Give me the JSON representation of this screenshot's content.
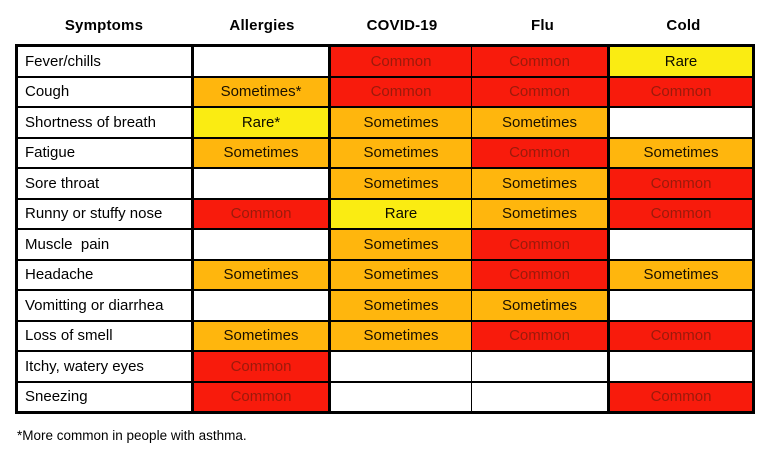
{
  "table": {
    "headers": [
      {
        "label": "Symptoms"
      },
      {
        "label": "Allergies"
      },
      {
        "label": "COVID-19"
      },
      {
        "label": "Flu"
      },
      {
        "label": "Cold"
      }
    ],
    "legend_colors": {
      "common": "#f81b0c",
      "sometimes": "#ffb60d",
      "rare": "#faec12",
      "none": "#ffffff"
    },
    "rows": [
      {
        "symptom": "Fever/chills",
        "cells": [
          {
            "text": "",
            "level": "none"
          },
          {
            "text": "Common",
            "level": "common"
          },
          {
            "text": "Common",
            "level": "common"
          },
          {
            "text": "Rare",
            "level": "rare"
          }
        ]
      },
      {
        "symptom": "Cough",
        "cells": [
          {
            "text": "Sometimes*",
            "level": "sometimes"
          },
          {
            "text": "Common",
            "level": "common"
          },
          {
            "text": "Common",
            "level": "common"
          },
          {
            "text": "Common",
            "level": "common"
          }
        ]
      },
      {
        "symptom": "Shortness of breath",
        "cells": [
          {
            "text": "Rare*",
            "level": "rare"
          },
          {
            "text": "Sometimes",
            "level": "sometimes"
          },
          {
            "text": "Sometimes",
            "level": "sometimes"
          },
          {
            "text": "",
            "level": "none"
          }
        ]
      },
      {
        "symptom": "Fatigue",
        "cells": [
          {
            "text": "Sometimes",
            "level": "sometimes"
          },
          {
            "text": "Sometimes",
            "level": "sometimes"
          },
          {
            "text": "Common",
            "level": "common"
          },
          {
            "text": "Sometimes",
            "level": "sometimes"
          }
        ]
      },
      {
        "symptom": "Sore throat",
        "cells": [
          {
            "text": "",
            "level": "none"
          },
          {
            "text": "Sometimes",
            "level": "sometimes"
          },
          {
            "text": "Sometimes",
            "level": "sometimes"
          },
          {
            "text": "Common",
            "level": "common"
          }
        ]
      },
      {
        "symptom": "Runny or stuffy nose",
        "cells": [
          {
            "text": "Common",
            "level": "common"
          },
          {
            "text": "Rare",
            "level": "rare"
          },
          {
            "text": "Sometimes",
            "level": "sometimes"
          },
          {
            "text": "Common",
            "level": "common"
          }
        ]
      },
      {
        "symptom": "Muscle  pain",
        "cells": [
          {
            "text": "",
            "level": "none"
          },
          {
            "text": "Sometimes",
            "level": "sometimes"
          },
          {
            "text": "Common",
            "level": "common"
          },
          {
            "text": "",
            "level": "none"
          }
        ]
      },
      {
        "symptom": "Headache",
        "cells": [
          {
            "text": "Sometimes",
            "level": "sometimes"
          },
          {
            "text": "Sometimes",
            "level": "sometimes"
          },
          {
            "text": "Common",
            "level": "common"
          },
          {
            "text": "Sometimes",
            "level": "sometimes"
          }
        ]
      },
      {
        "symptom": "Vomitting or diarrhea",
        "cells": [
          {
            "text": "",
            "level": "none"
          },
          {
            "text": "Sometimes",
            "level": "sometimes"
          },
          {
            "text": "Sometimes",
            "level": "sometimes"
          },
          {
            "text": "",
            "level": "none"
          }
        ]
      },
      {
        "symptom": "Loss of smell",
        "cells": [
          {
            "text": "Sometimes",
            "level": "sometimes"
          },
          {
            "text": "Sometimes",
            "level": "sometimes"
          },
          {
            "text": "Common",
            "level": "common"
          },
          {
            "text": "Common",
            "level": "common"
          }
        ]
      },
      {
        "symptom": "Itchy, watery eyes",
        "cells": [
          {
            "text": "Common",
            "level": "common"
          },
          {
            "text": "",
            "level": "none"
          },
          {
            "text": "",
            "level": "none"
          },
          {
            "text": "",
            "level": "none"
          }
        ]
      },
      {
        "symptom": "Sneezing",
        "cells": [
          {
            "text": "Common",
            "level": "common"
          },
          {
            "text": "",
            "level": "none"
          },
          {
            "text": "",
            "level": "none"
          },
          {
            "text": "Common",
            "level": "common"
          }
        ]
      }
    ]
  },
  "footnote": "*More common in people with asthma."
}
